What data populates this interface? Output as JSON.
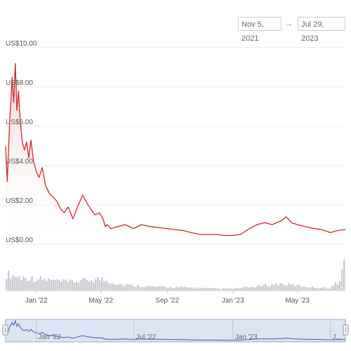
{
  "range_selector": {
    "from": "Nov 5, 2021",
    "arrow": "→",
    "to": "Jul 29, 2023"
  },
  "colors": {
    "price_line": "#d62728",
    "area_fill": "#f7c9c9",
    "volume": "#c8ccd2",
    "navigator_fill": "#dde4f3",
    "navigator_line": "#3b5fb5"
  },
  "chart_data": {
    "type": "line",
    "title": "",
    "x_start": "2021-11-05",
    "x_end": "2023-07-29",
    "y_ticks": [
      "US$10.00",
      "US$8.00",
      "US$6.00",
      "US$4.00",
      "US$2.00",
      "US$0.00"
    ],
    "y_tick_values": [
      10,
      8,
      6,
      4,
      2,
      0
    ],
    "ylim": [
      0,
      10
    ],
    "x_ticks": [
      "Jan '22",
      "May '22",
      "Sep '22",
      "Jan '23",
      "May '23"
    ],
    "navigator_ticks": [
      "Jan '22",
      "Jul '22",
      "Jan '23",
      "J..."
    ],
    "grid": true,
    "series": [
      {
        "x": [
          "2021-11-05",
          "2021-11-08",
          "2021-11-10",
          "2021-11-13",
          "2021-11-15",
          "2021-11-17",
          "2021-11-20",
          "2021-11-23",
          "2021-11-26",
          "2021-11-29",
          "2021-12-02",
          "2021-12-06",
          "2021-12-10",
          "2021-12-14",
          "2021-12-18",
          "2021-12-22",
          "2021-12-27",
          "2022-01-01",
          "2022-01-06",
          "2022-01-12",
          "2022-01-18",
          "2022-01-25",
          "2022-02-01",
          "2022-02-08",
          "2022-02-15",
          "2022-02-22",
          "2022-03-01",
          "2022-03-10",
          "2022-03-20",
          "2022-03-28",
          "2022-04-05",
          "2022-04-12",
          "2022-04-20",
          "2022-04-28",
          "2022-05-05",
          "2022-05-09",
          "2022-05-12",
          "2022-05-20",
          "2022-06-01",
          "2022-06-15",
          "2022-07-01",
          "2022-07-15",
          "2022-08-01",
          "2022-08-15",
          "2022-09-01",
          "2022-09-15",
          "2022-10-01",
          "2022-10-15",
          "2022-11-01",
          "2022-11-15",
          "2022-12-01",
          "2022-12-15",
          "2023-01-01",
          "2023-01-15",
          "2023-02-01",
          "2023-02-15",
          "2023-03-01",
          "2023-03-15",
          "2023-04-01",
          "2023-04-10",
          "2023-04-20",
          "2023-05-01",
          "2023-05-15",
          "2023-06-01",
          "2023-06-15",
          "2023-07-01",
          "2023-07-15",
          "2023-07-29"
        ],
        "values": [
          5.0,
          3.2,
          4.5,
          6.5,
          7.4,
          8.5,
          7.2,
          9.2,
          6.8,
          7.8,
          6.3,
          5.2,
          4.8,
          5.2,
          4.4,
          5.3,
          4.2,
          3.7,
          3.4,
          3.9,
          3.0,
          2.6,
          2.4,
          2.2,
          1.8,
          1.6,
          1.9,
          1.3,
          2.0,
          2.5,
          2.1,
          1.8,
          1.5,
          1.6,
          1.3,
          0.9,
          1.0,
          0.8,
          0.9,
          1.0,
          0.8,
          1.0,
          0.9,
          0.85,
          0.8,
          0.75,
          0.7,
          0.6,
          0.5,
          0.5,
          0.5,
          0.45,
          0.45,
          0.5,
          0.8,
          1.0,
          1.1,
          1.0,
          1.2,
          1.4,
          1.1,
          1.0,
          0.9,
          0.8,
          0.75,
          0.6,
          0.7,
          0.75
        ]
      }
    ],
    "volume": {
      "x": [
        "2021-11-05",
        "2021-12-01",
        "2022-01-01",
        "2022-02-01",
        "2022-03-01",
        "2022-04-01",
        "2022-05-01",
        "2022-06-01",
        "2022-07-01",
        "2022-08-01",
        "2022-09-01",
        "2022-10-01",
        "2022-11-01",
        "2022-12-01",
        "2023-01-01",
        "2023-02-01",
        "2023-03-01",
        "2023-04-01",
        "2023-05-01",
        "2023-06-01",
        "2023-07-01",
        "2023-07-20",
        "2023-07-29"
      ],
      "values": [
        0.5,
        0.4,
        0.35,
        0.3,
        0.25,
        0.3,
        0.35,
        0.2,
        0.15,
        0.12,
        0.1,
        0.1,
        0.08,
        0.06,
        0.06,
        0.1,
        0.15,
        0.2,
        0.15,
        0.1,
        0.08,
        0.3,
        1.0
      ]
    }
  }
}
